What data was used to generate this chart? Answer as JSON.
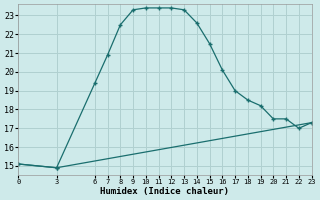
{
  "xlabel": "Humidex (Indice chaleur)",
  "background_color": "#ceeaea",
  "grid_color": "#b0d0d0",
  "line_color": "#1a6e6e",
  "x_ticks": [
    0,
    3,
    6,
    7,
    8,
    9,
    10,
    11,
    12,
    13,
    14,
    15,
    16,
    17,
    18,
    19,
    20,
    21,
    22,
    23
  ],
  "ylim": [
    14.5,
    23.6
  ],
  "xlim": [
    0,
    23
  ],
  "curve_x": [
    0,
    3,
    6,
    7,
    8,
    9,
    10,
    11,
    12,
    13,
    14,
    15,
    16,
    17,
    18,
    19,
    20,
    21,
    22,
    23
  ],
  "curve_y": [
    15.1,
    14.9,
    19.4,
    20.9,
    22.5,
    23.3,
    23.4,
    23.4,
    23.4,
    23.3,
    22.6,
    21.5,
    20.1,
    19.0,
    18.5,
    18.2,
    17.5,
    17.5,
    17.0,
    17.3
  ],
  "line_x": [
    0,
    3,
    23
  ],
  "line_y": [
    15.1,
    14.9,
    17.3
  ],
  "yticks": [
    15,
    16,
    17,
    18,
    19,
    20,
    21,
    22,
    23
  ]
}
